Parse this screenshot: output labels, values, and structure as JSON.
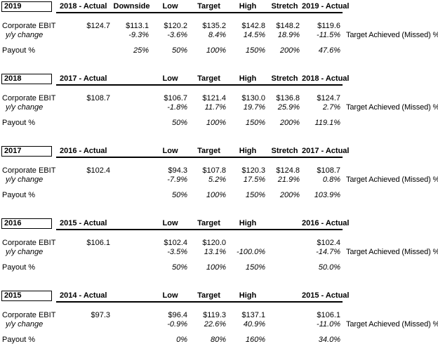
{
  "note_label": "Target Achieved (Missed) %",
  "row_labels": {
    "ebit": "Corporate EBIT",
    "yoy": "y/y change",
    "payout": "Payout %"
  },
  "blocks": [
    {
      "year": "2019",
      "headers": {
        "prior": "2018 - Actual",
        "downside": "Downside",
        "low": "Low",
        "target": "Target",
        "high": "High",
        "stretch": "Stretch",
        "actual": "2019 - Actual"
      },
      "ebit": {
        "prior": "$124.7",
        "downside": "$113.1",
        "low": "$120.2",
        "target": "$135.2",
        "high": "$142.8",
        "stretch": "$148.2",
        "actual": "$119.6"
      },
      "yoy": {
        "downside": "-9.3%",
        "low": "-3.6%",
        "target": "8.4%",
        "high": "14.5%",
        "stretch": "18.9%",
        "actual": "-11.5%"
      },
      "payout": {
        "downside": "25%",
        "low": "50%",
        "target": "100%",
        "high": "150%",
        "stretch": "200%",
        "actual": "47.6%"
      }
    },
    {
      "year": "2018",
      "headers": {
        "prior": "2017 - Actual",
        "downside": "",
        "low": "Low",
        "target": "Target",
        "high": "High",
        "stretch": "Stretch",
        "actual": "2018 - Actual"
      },
      "ebit": {
        "prior": "$108.7",
        "downside": "",
        "low": "$106.7",
        "target": "$121.4",
        "high": "$130.0",
        "stretch": "$136.8",
        "actual": "$124.7"
      },
      "yoy": {
        "downside": "",
        "low": "-1.8%",
        "target": "11.7%",
        "high": "19.7%",
        "stretch": "25.9%",
        "actual": "2.7%"
      },
      "payout": {
        "downside": "",
        "low": "50%",
        "target": "100%",
        "high": "150%",
        "stretch": "200%",
        "actual": "119.1%"
      }
    },
    {
      "year": "2017",
      "headers": {
        "prior": "2016 - Actual",
        "downside": "",
        "low": "Low",
        "target": "Target",
        "high": "High",
        "stretch": "Stretch",
        "actual": "2017 - Actual"
      },
      "ebit": {
        "prior": "$102.4",
        "downside": "",
        "low": "$94.3",
        "target": "$107.8",
        "high": "$120.3",
        "stretch": "$124.8",
        "actual": "$108.7"
      },
      "yoy": {
        "downside": "",
        "low": "-7.9%",
        "target": "5.2%",
        "high": "17.5%",
        "stretch": "21.9%",
        "actual": "0.8%"
      },
      "payout": {
        "downside": "",
        "low": "50%",
        "target": "100%",
        "high": "150%",
        "stretch": "200%",
        "actual": "103.9%"
      }
    },
    {
      "year": "2016",
      "headers": {
        "prior": "2015 - Actual",
        "downside": "",
        "low": "Low",
        "target": "Target",
        "high": "High",
        "stretch": "",
        "actual": "2016 - Actual"
      },
      "ebit": {
        "prior": "$106.1",
        "downside": "",
        "low": "$102.4",
        "target": "$120.0",
        "high": "",
        "stretch": "",
        "actual": "$102.4"
      },
      "yoy": {
        "downside": "",
        "low": "-3.5%",
        "target": "13.1%",
        "high": "-100.0%",
        "stretch": "",
        "actual": "-14.7%"
      },
      "payout": {
        "downside": "",
        "low": "50%",
        "target": "100%",
        "high": "150%",
        "stretch": "",
        "actual": "50.0%"
      }
    },
    {
      "year": "2015",
      "headers": {
        "prior": "2014 - Actual",
        "downside": "",
        "low": "Low",
        "target": "Target",
        "high": "High",
        "stretch": "",
        "actual": "2015 - Actual"
      },
      "ebit": {
        "prior": "$97.3",
        "downside": "",
        "low": "$96.4",
        "target": "$119.3",
        "high": "$137.1",
        "stretch": "",
        "actual": "$106.1"
      },
      "yoy": {
        "downside": "",
        "low": "-0.9%",
        "target": "22.6%",
        "high": "40.9%",
        "stretch": "",
        "actual": "-11.0%"
      },
      "payout": {
        "downside": "",
        "low": "0%",
        "target": "80%",
        "high": "160%",
        "stretch": "",
        "actual": "34.0%"
      }
    }
  ]
}
